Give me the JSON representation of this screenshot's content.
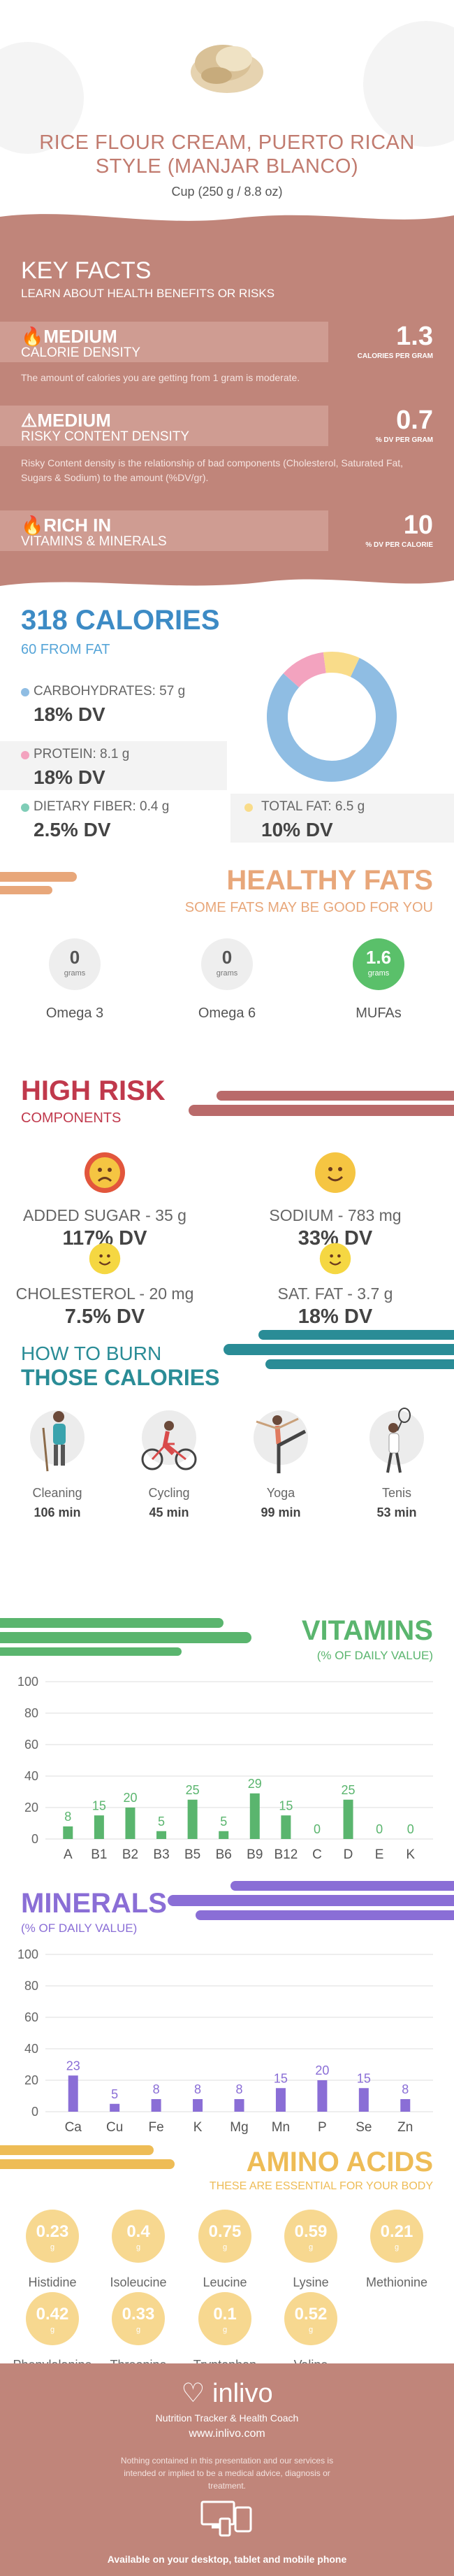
{
  "hero": {
    "title": "RICE FLOUR CREAM, PUERTO RICAN STYLE (MANJAR BLANCO)",
    "serving": "Cup (250 g / 8.8 oz)"
  },
  "key_facts": {
    "title": "KEY FACTS",
    "subtitle": "LEARN ABOUT HEALTH BENEFITS OR RISKS",
    "rows": [
      {
        "level": "MEDIUM",
        "label": "CALORIE DENSITY",
        "value": "1.3",
        "unit": "CALORIES PER GRAM",
        "icon": "flame-icon",
        "desc": "The amount of calories you are getting from 1 gram is moderate."
      },
      {
        "level": "MEDIUM",
        "label": "RISKY CONTENT DENSITY",
        "value": "0.7",
        "unit": "% DV PER GRAM",
        "icon": "warning-icon",
        "desc": "Risky Content density is the relationship of bad components (Cholesterol, Saturated Fat, Sugars & Sodium) to the amount (%DV/gr)."
      },
      {
        "level": "RICH  IN",
        "label": "VITAMINS & MINERALS",
        "value": "10",
        "unit": "% DV PER CALORIE",
        "icon": "flame-icon",
        "desc": ""
      }
    ]
  },
  "calories": {
    "title": "318 CALORIES",
    "subtitle": "60 FROM FAT",
    "nutrients": [
      {
        "name": "CARBOHYDRATES: 57 g",
        "dv": "18% DV",
        "color": "#8fbde3"
      },
      {
        "name": "PROTEIN: 8.1 g",
        "dv": "18% DV",
        "color": "#f3a3bf"
      },
      {
        "name": "DIETARY FIBER: 0.4 g",
        "dv": "2.5% DV",
        "color": "#7fcdb7"
      },
      {
        "name": "TOTAL FAT: 6.5 g",
        "dv": "10% DV",
        "color": "#f9dc8a"
      }
    ],
    "donut": [
      {
        "name": "CARBOHYDRATES",
        "value": 57,
        "color": "#8fbde3"
      },
      {
        "name": "PROTEIN",
        "value": 8.1,
        "color": "#f3a3bf"
      },
      {
        "name": "TOTAL FAT",
        "value": 6.5,
        "color": "#f9dc8a"
      }
    ]
  },
  "fats": {
    "title": "HEALTHY FATS",
    "subtitle": "SOME FATS MAY BE GOOD FOR YOU",
    "items": [
      {
        "value": "0",
        "unit": "grams",
        "name": "Omega 3",
        "highlight": false
      },
      {
        "value": "0",
        "unit": "grams",
        "name": "Omega 6",
        "highlight": false
      },
      {
        "value": "1.6",
        "unit": "grams",
        "name": "MUFAs",
        "highlight": true
      }
    ],
    "accent": "#e8a77a",
    "highlight_color": "#5ac06a"
  },
  "risk": {
    "title": "HIGH RISK",
    "subtitle": "COMPONENTS",
    "color": "#c0394c",
    "items": [
      {
        "name": "ADDED SUGAR - 35 g",
        "dv": "117% DV",
        "face": "sad",
        "color": "#e2563c"
      },
      {
        "name": "SODIUM - 783 mg",
        "dv": "33% DV",
        "face": "happy",
        "color": "#f5c542"
      },
      {
        "name": "CHOLESTEROL - 20 mg",
        "dv": "7.5% DV",
        "face": "happy",
        "color": "#f5d742"
      },
      {
        "name": "SAT. FAT - 3.7 g",
        "dv": "18% DV",
        "face": "happy",
        "color": "#f5d742"
      }
    ]
  },
  "burn": {
    "title1": "HOW TO BURN",
    "title2": "THOSE CALORIES",
    "color": "#2a8c96",
    "items": [
      {
        "name": "Cleaning",
        "mins": "106 min",
        "icon": "cleaning-icon"
      },
      {
        "name": "Cycling",
        "mins": "45 min",
        "icon": "cycling-icon"
      },
      {
        "name": "Yoga",
        "mins": "99 min",
        "icon": "yoga-icon"
      },
      {
        "name": "Tenis",
        "mins": "53 min",
        "icon": "tennis-icon"
      }
    ]
  },
  "chart_data": [
    {
      "type": "bar",
      "title": "VITAMINS",
      "subtitle": "(% OF DAILY VALUE)",
      "color": "#5ab56e",
      "ylim": [
        0,
        100
      ],
      "yticks": [
        0,
        20,
        40,
        60,
        80,
        100
      ],
      "categories": [
        "A",
        "B1",
        "B2",
        "B3",
        "B5",
        "B6",
        "B9",
        "B12",
        "C",
        "D",
        "E",
        "K"
      ],
      "values": [
        8,
        15,
        20,
        5,
        25,
        5,
        29,
        15,
        0,
        25,
        0,
        0
      ]
    },
    {
      "type": "bar",
      "title": "MINERALS",
      "subtitle": "(% OF DAILY VALUE)",
      "color": "#8a6ed6",
      "ylim": [
        0,
        100
      ],
      "yticks": [
        0,
        20,
        40,
        60,
        80,
        100
      ],
      "categories": [
        "Ca",
        "Cu",
        "Fe",
        "K",
        "Mg",
        "Mn",
        "P",
        "Se",
        "Zn"
      ],
      "values": [
        23,
        5,
        8,
        8,
        8,
        15,
        20,
        15,
        8
      ]
    }
  ],
  "amino": {
    "title": "AMINO ACIDS",
    "subtitle": "THESE ARE ESSENTIAL FOR YOUR BODY",
    "color": "#eebc56",
    "items": [
      {
        "value": "0.23",
        "unit": "g",
        "name": "Histidine"
      },
      {
        "value": "0.4",
        "unit": "g",
        "name": "Isoleucine"
      },
      {
        "value": "0.75",
        "unit": "g",
        "name": "Leucine"
      },
      {
        "value": "0.59",
        "unit": "g",
        "name": "Lysine"
      },
      {
        "value": "0.21",
        "unit": "g",
        "name": "Methionine"
      },
      {
        "value": "0.42",
        "unit": "g",
        "name": "Phenylalanine"
      },
      {
        "value": "0.33",
        "unit": "g",
        "name": "Threonine"
      },
      {
        "value": "0.1",
        "unit": "g",
        "name": "Tryptophan"
      },
      {
        "value": "0.52",
        "unit": "g",
        "name": "Valine"
      }
    ]
  },
  "footer": {
    "logo": "inlivo",
    "tagline": "Nutrition Tracker & Health Coach",
    "url": "www.inlivo.com",
    "disclaimer": "Nothing contained in this presentation and our services is intended or implied to be a medical advice, diagnosis or treatment.",
    "available": "Available on your desktop, tablet and mobile phone"
  }
}
